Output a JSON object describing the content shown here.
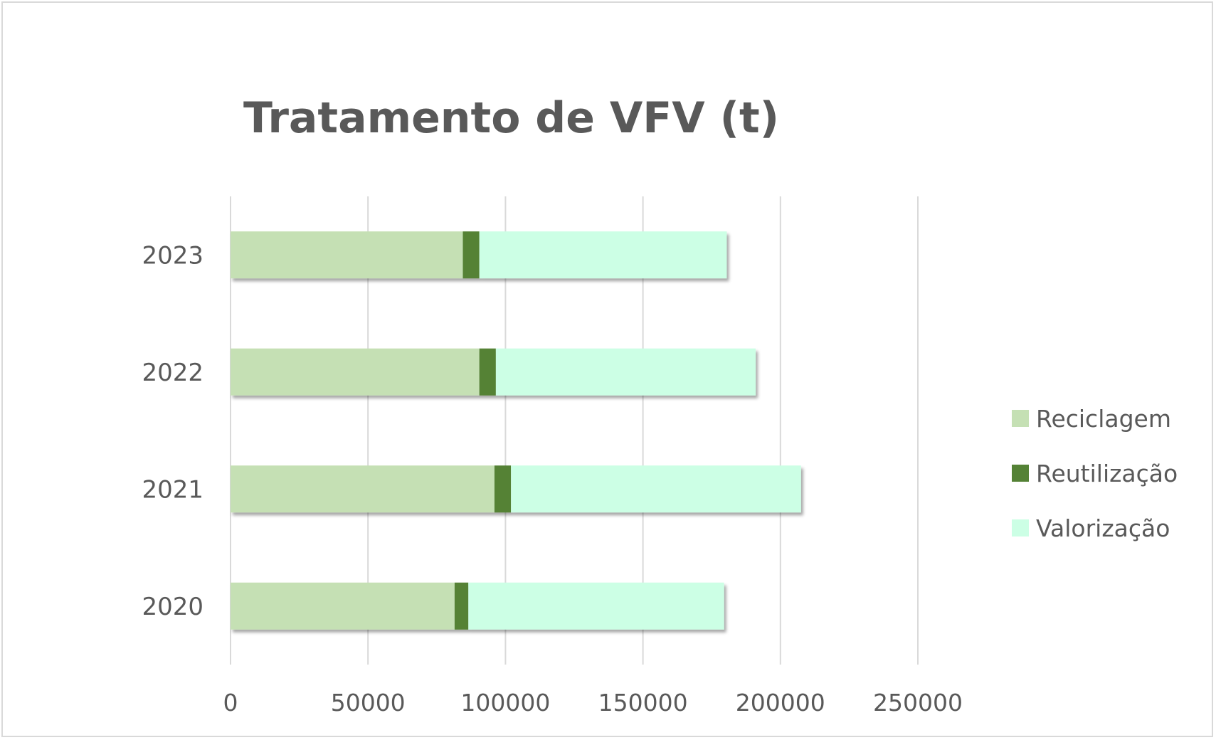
{
  "chart_data": {
    "type": "bar",
    "orientation": "horizontal",
    "stacked": true,
    "title": "Tratamento de VFV (t)",
    "categories": [
      "2020",
      "2021",
      "2022",
      "2023"
    ],
    "series": [
      {
        "name": "Reciclagem",
        "color": "#c5e0b4",
        "values": [
          81500,
          96000,
          90500,
          84500
        ]
      },
      {
        "name": "Reutilização",
        "color": "#548235",
        "values": [
          5000,
          6000,
          6000,
          6000
        ]
      },
      {
        "name": "Valorização",
        "color": "#ccffe5",
        "values": [
          93000,
          105500,
          94500,
          90000
        ]
      }
    ],
    "xlim": [
      0,
      250000
    ],
    "x_ticks": [
      "0",
      "50000",
      "100000",
      "150000",
      "200000",
      "250000"
    ],
    "grid": true,
    "legend_position": "right"
  }
}
